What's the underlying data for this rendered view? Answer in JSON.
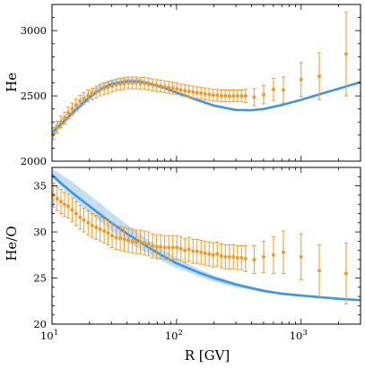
{
  "chart_data": [
    {
      "type": "line",
      "ylabel": "He",
      "xlabel": "",
      "xscale": "log",
      "xlim": [
        10,
        3000
      ],
      "ylim": [
        2000,
        3200
      ],
      "yticks": [
        2000,
        2500,
        3000
      ],
      "ytick_labels": [
        "2000",
        "2500",
        "3000"
      ],
      "show_x_tick_labels": false,
      "colors": {
        "model": "#3a96e6",
        "band": "#b8d8f6",
        "data": "#f39a22"
      },
      "model": {
        "x": [
          10,
          12,
          15,
          20,
          25,
          30,
          40,
          50,
          60,
          80,
          100,
          150,
          200,
          300,
          400,
          500,
          700,
          1000,
          1500,
          2000,
          3000
        ],
        "y": [
          2215,
          2290,
          2380,
          2490,
          2555,
          2590,
          2612,
          2610,
          2595,
          2560,
          2525,
          2465,
          2425,
          2392,
          2390,
          2400,
          2430,
          2470,
          2520,
          2555,
          2605
        ],
        "lo": [
          2180,
          2260,
          2355,
          2470,
          2540,
          2575,
          2600,
          2598,
          2585,
          2552,
          2517,
          2458,
          2418,
          2386,
          2384,
          2394,
          2424,
          2464,
          2514,
          2549,
          2599
        ],
        "hi": [
          2255,
          2330,
          2425,
          2540,
          2600,
          2625,
          2640,
          2632,
          2612,
          2575,
          2538,
          2477,
          2435,
          2400,
          2397,
          2407,
          2437,
          2477,
          2527,
          2562,
          2612
        ]
      },
      "points": {
        "x": [
          10.3,
          11.0,
          11.8,
          12.6,
          13.5,
          14.5,
          15.6,
          16.8,
          18.0,
          19.5,
          21.0,
          22.6,
          24.3,
          26.2,
          28.2,
          30.4,
          32.8,
          35.3,
          38.0,
          41.0,
          44.2,
          47.6,
          51.3,
          55.3,
          59.6,
          64.2,
          69.2,
          74.6,
          80.4,
          86.6,
          93.3,
          100.5,
          108.3,
          116.7,
          125.8,
          135.6,
          146.1,
          157.4,
          169.6,
          182.8,
          197.0,
          212.3,
          228.8,
          246.5,
          265.6,
          286.2,
          308.5,
          332.4,
          358.2,
          420,
          500,
          600,
          720,
          1000,
          1400,
          2300
        ],
        "y": [
          2210,
          2260,
          2300,
          2330,
          2370,
          2400,
          2430,
          2460,
          2480,
          2500,
          2515,
          2530,
          2545,
          2555,
          2565,
          2575,
          2585,
          2590,
          2595,
          2600,
          2600,
          2600,
          2595,
          2595,
          2590,
          2585,
          2580,
          2575,
          2570,
          2565,
          2560,
          2555,
          2545,
          2540,
          2535,
          2530,
          2525,
          2520,
          2515,
          2510,
          2505,
          2505,
          2500,
          2500,
          2500,
          2500,
          2500,
          2500,
          2500,
          2490,
          2510,
          2550,
          2545,
          2625,
          2650,
          2820
        ],
        "err": [
          45,
          45,
          45,
          45,
          45,
          45,
          45,
          45,
          45,
          45,
          45,
          45,
          45,
          45,
          45,
          45,
          45,
          45,
          45,
          45,
          45,
          45,
          45,
          45,
          45,
          45,
          45,
          45,
          45,
          45,
          45,
          45,
          45,
          45,
          45,
          45,
          45,
          45,
          45,
          45,
          45,
          45,
          45,
          45,
          45,
          45,
          45,
          45,
          50,
          65,
          70,
          85,
          100,
          130,
          180,
          320
        ]
      }
    },
    {
      "type": "line",
      "ylabel": "He/O",
      "xlabel": "R [GV]",
      "xscale": "log",
      "xlim": [
        10,
        3000
      ],
      "ylim": [
        20,
        37
      ],
      "yticks": [
        20,
        25,
        30,
        35
      ],
      "ytick_labels": [
        "20",
        "25",
        "30",
        "35"
      ],
      "xticks": [
        10,
        100,
        1000
      ],
      "xtick_labels": [
        [
          "10",
          "1"
        ],
        [
          "10",
          "2"
        ],
        [
          "10",
          "3"
        ]
      ],
      "show_x_tick_labels": true,
      "colors": {
        "model": "#3a96e6",
        "band": "#b8d8f6",
        "data": "#f39a22"
      },
      "model": {
        "x": [
          10,
          12,
          15,
          20,
          25,
          30,
          40,
          50,
          60,
          80,
          100,
          150,
          200,
          300,
          400,
          500,
          700,
          1000,
          1500,
          2000,
          3000
        ],
        "y": [
          36.2,
          35.2,
          34.1,
          32.8,
          31.8,
          31.0,
          29.8,
          29.0,
          28.3,
          27.3,
          26.6,
          25.6,
          25.0,
          24.3,
          23.9,
          23.6,
          23.3,
          23.1,
          22.9,
          22.75,
          22.6
        ],
        "lo": [
          35.8,
          34.8,
          33.6,
          32.1,
          31.0,
          30.1,
          28.9,
          28.2,
          27.6,
          26.7,
          26.1,
          25.2,
          24.6,
          24.0,
          23.7,
          23.5,
          23.2,
          23.0,
          22.85,
          22.7,
          22.55
        ],
        "hi": [
          36.9,
          36.2,
          35.3,
          34.0,
          33.0,
          32.1,
          30.8,
          29.9,
          29.1,
          28.0,
          27.2,
          26.0,
          25.3,
          24.5,
          24.1,
          23.8,
          23.45,
          23.2,
          23.0,
          22.85,
          22.7
        ]
      },
      "points": {
        "x": [
          10.3,
          11.0,
          11.8,
          12.6,
          13.5,
          14.5,
          15.6,
          16.8,
          18.0,
          19.5,
          21.0,
          22.6,
          24.3,
          26.2,
          28.2,
          30.4,
          32.8,
          35.3,
          38.0,
          41.0,
          44.2,
          47.6,
          51.3,
          55.3,
          59.6,
          64.2,
          69.2,
          74.6,
          80.4,
          86.6,
          93.3,
          100.5,
          108.3,
          116.7,
          125.8,
          135.6,
          146.1,
          157.4,
          169.6,
          182.8,
          197.0,
          212.3,
          228.8,
          246.5,
          265.6,
          286.2,
          308.5,
          332.4,
          358.2,
          420,
          500,
          600,
          720,
          1000,
          1400,
          2300
        ],
        "y": [
          34.0,
          33.6,
          33.3,
          33.0,
          32.8,
          32.4,
          32.0,
          31.6,
          31.3,
          31.0,
          30.7,
          30.5,
          30.3,
          30.1,
          29.9,
          29.6,
          29.4,
          29.3,
          29.2,
          29.1,
          29.0,
          28.9,
          28.9,
          28.8,
          28.7,
          28.5,
          28.4,
          28.4,
          28.3,
          28.3,
          28.3,
          28.3,
          28.2,
          28.0,
          28.1,
          27.9,
          27.9,
          27.8,
          27.7,
          27.6,
          27.5,
          27.6,
          27.4,
          27.3,
          27.3,
          27.3,
          27.2,
          27.2,
          27.1,
          27.0,
          27.3,
          27.5,
          27.8,
          27.3,
          25.8,
          25.5
        ],
        "err": [
          1.3,
          1.3,
          1.3,
          1.3,
          1.3,
          1.3,
          1.3,
          1.3,
          1.3,
          1.3,
          1.3,
          1.3,
          1.3,
          1.3,
          1.3,
          1.3,
          1.3,
          1.3,
          1.3,
          1.3,
          1.3,
          1.3,
          1.3,
          1.3,
          1.3,
          1.3,
          1.3,
          1.3,
          1.3,
          1.3,
          1.3,
          1.3,
          1.3,
          1.3,
          1.3,
          1.3,
          1.3,
          1.3,
          1.3,
          1.3,
          1.3,
          1.3,
          1.3,
          1.3,
          1.3,
          1.3,
          1.3,
          1.3,
          1.4,
          1.5,
          1.7,
          2.0,
          2.3,
          2.5,
          2.8,
          3.3
        ]
      }
    }
  ]
}
